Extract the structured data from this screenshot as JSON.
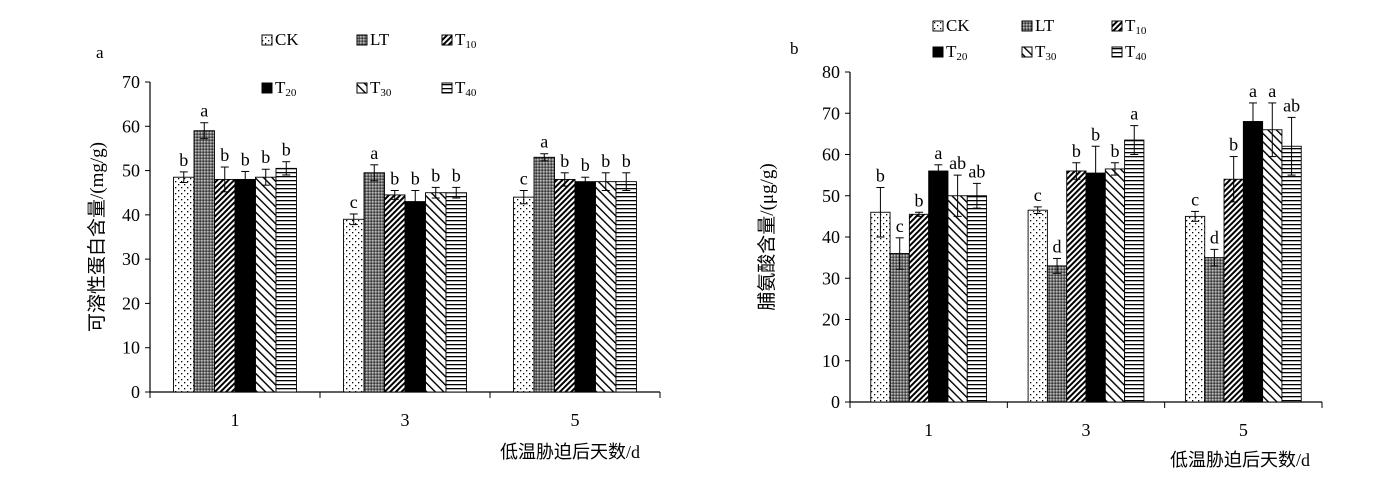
{
  "chart_data": [
    {
      "type": "bar",
      "panel_label": "a",
      "ylabel": "可溶性蛋白含量/(mg/g)",
      "xlabel": "低温胁迫后天数/d",
      "categories": [
        "1",
        "3",
        "5"
      ],
      "ylim": [
        0,
        70
      ],
      "yticks": [
        "0",
        "10",
        "20",
        "30",
        "40",
        "50",
        "60",
        "70"
      ],
      "grid": false,
      "legend_placement": "top",
      "series": [
        {
          "name": "CK",
          "sub": "",
          "values": [
            48.5,
            39,
            44
          ],
          "errors": [
            1.2,
            1.2,
            1.5
          ],
          "letters": [
            "b",
            "c",
            "c"
          ]
        },
        {
          "name": "LT",
          "sub": "",
          "values": [
            59,
            49.5,
            53
          ],
          "errors": [
            1.8,
            1.8,
            0.8
          ],
          "letters": [
            "a",
            "a",
            "a"
          ]
        },
        {
          "name": "T",
          "sub": "10",
          "values": [
            48,
            44.5,
            48
          ],
          "errors": [
            2.8,
            1.0,
            1.5
          ],
          "letters": [
            "b",
            "b",
            "b"
          ]
        },
        {
          "name": "T",
          "sub": "20",
          "values": [
            48,
            43,
            47.5
          ],
          "errors": [
            1.8,
            2.5,
            1.0
          ],
          "letters": [
            "b",
            "b",
            "b"
          ]
        },
        {
          "name": "T",
          "sub": "30",
          "values": [
            48.5,
            45,
            47.5
          ],
          "errors": [
            1.8,
            1.2,
            2.0
          ],
          "letters": [
            "b",
            "b",
            "b"
          ]
        },
        {
          "name": "T",
          "sub": "40",
          "values": [
            50.5,
            45,
            47.5
          ],
          "errors": [
            1.5,
            1.2,
            2.0
          ],
          "letters": [
            "b",
            "b",
            "b"
          ]
        }
      ]
    },
    {
      "type": "bar",
      "panel_label": "b",
      "ylabel": "脯氨酸含量/(μg/g)",
      "xlabel": "低温胁迫后天数/d",
      "categories": [
        "1",
        "3",
        "5"
      ],
      "ylim": [
        0,
        80
      ],
      "yticks": [
        "0",
        "10",
        "20",
        "30",
        "40",
        "50",
        "60",
        "70",
        "80"
      ],
      "grid": false,
      "legend_placement": "top",
      "series": [
        {
          "name": "CK",
          "sub": "",
          "values": [
            46,
            46.5,
            45
          ],
          "errors": [
            6.0,
            0.8,
            1.2
          ],
          "letters": [
            "b",
            "c",
            "c"
          ]
        },
        {
          "name": "LT",
          "sub": "",
          "values": [
            36,
            33,
            35
          ],
          "errors": [
            3.8,
            1.8,
            2.0
          ],
          "letters": [
            "c",
            "d",
            "d"
          ]
        },
        {
          "name": "T",
          "sub": "10",
          "values": [
            45.5,
            56,
            54
          ],
          "errors": [
            0.5,
            2.0,
            5.5
          ],
          "letters": [
            "b",
            "b",
            "b"
          ]
        },
        {
          "name": "T",
          "sub": "20",
          "values": [
            56,
            55.5,
            68
          ],
          "errors": [
            1.5,
            6.5,
            4.5
          ],
          "letters": [
            "a",
            "b",
            "a"
          ]
        },
        {
          "name": "T",
          "sub": "30",
          "values": [
            50,
            56.5,
            66
          ],
          "errors": [
            5.0,
            1.5,
            6.5
          ],
          "letters": [
            "ab",
            "b",
            "a"
          ]
        },
        {
          "name": "T",
          "sub": "40",
          "values": [
            50,
            63.5,
            62
          ],
          "errors": [
            3.0,
            3.5,
            7.0
          ],
          "letters": [
            "ab",
            "a",
            "ab"
          ]
        }
      ]
    }
  ]
}
